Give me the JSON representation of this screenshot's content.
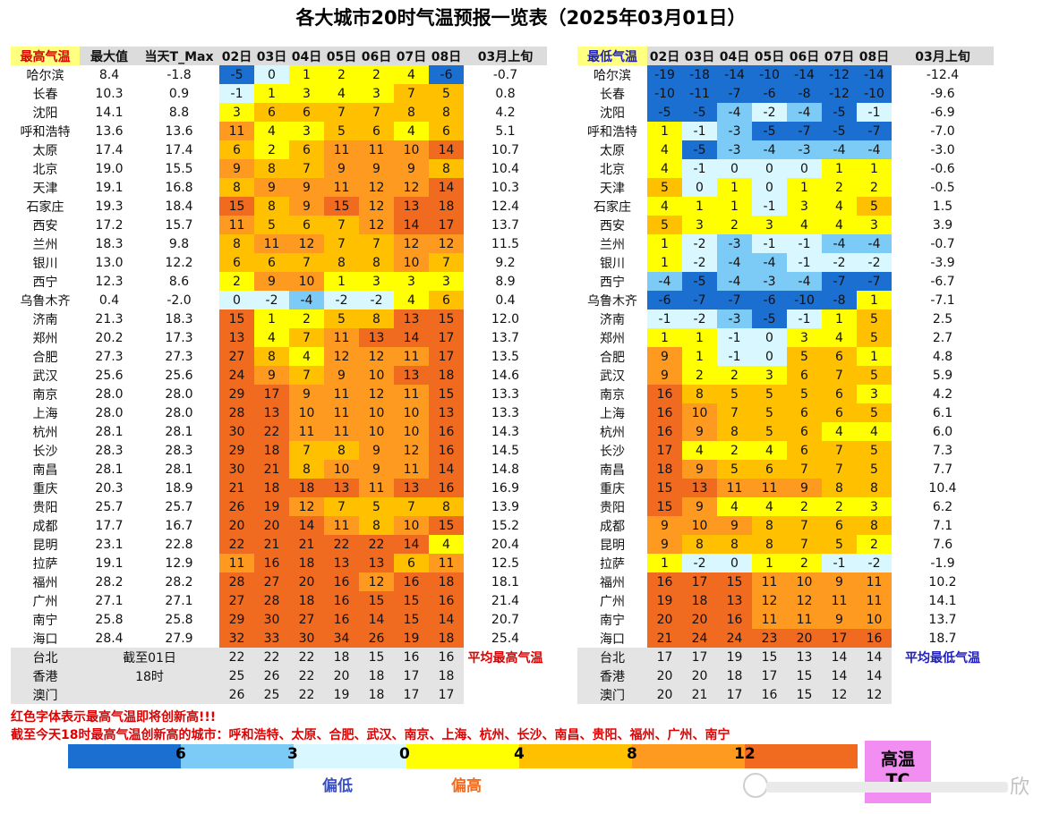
{
  "title": "各大城市20时气温预报一览表（2025年03月01日）",
  "colors": {
    "scale": [
      "#1a6fd0",
      "#7ccbf6",
      "#d9f7ff",
      "#ffff00",
      "#ffc000",
      "#ff9a20",
      "#f06a20"
    ],
    "max_value_text": "#f08a1e",
    "red_text": "#e00000",
    "avg_max_label": "#e00000",
    "avg_min_label": "#2020c0",
    "hot_box": "#f28ef2",
    "header_bg": "#dcdcdc"
  },
  "legend": {
    "ticks": [
      "6",
      "3",
      "0",
      "4",
      "8",
      "12"
    ],
    "low_label": "偏低",
    "high_label": "偏高",
    "hot_label": "高温",
    "hot_sub": "TC"
  },
  "notes": {
    "line1": "红色字体表示最高气温即将创新高!!!",
    "line2": "截至今天18时最高气温创新高的城市：呼和浩特、太原、合肥、武汉、南京、上海、杭州、长沙、南昌、贵阳、福州、广州、南宁"
  },
  "watermark": "欣",
  "chart_data": [
    {
      "type": "table",
      "title": "最高气温",
      "headers": [
        "最高气温",
        "最大值",
        "当天T_Max",
        "02日",
        "03日",
        "04日",
        "05日",
        "06日",
        "07日",
        "08日",
        "03月上旬"
      ],
      "rows": [
        {
          "city": "哈尔滨",
          "max": "8.4",
          "today": "-1.8",
          "days": [
            -5,
            0,
            1,
            2,
            2,
            4,
            -6
          ],
          "avg": "-0.7"
        },
        {
          "city": "长春",
          "max": "10.3",
          "today": "0.9",
          "days": [
            -1,
            1,
            3,
            4,
            3,
            7,
            5
          ],
          "avg": "0.8"
        },
        {
          "city": "沈阳",
          "max": "14.1",
          "today": "8.8",
          "days": [
            3,
            6,
            6,
            7,
            7,
            8,
            8
          ],
          "avg": "4.2"
        },
        {
          "city": "呼和浩特",
          "max": "13.6",
          "today": "13.6",
          "days": [
            11,
            4,
            3,
            5,
            6,
            4,
            6
          ],
          "avg": "5.1"
        },
        {
          "city": "太原",
          "max": "17.4",
          "today": "17.4",
          "days": [
            6,
            2,
            6,
            11,
            11,
            10,
            14
          ],
          "avg": "10.7"
        },
        {
          "city": "北京",
          "max": "19.0",
          "today": "15.5",
          "days": [
            9,
            8,
            7,
            9,
            9,
            9,
            8
          ],
          "avg": "10.4"
        },
        {
          "city": "天津",
          "max": "19.1",
          "today": "16.8",
          "days": [
            8,
            9,
            9,
            11,
            12,
            12,
            14
          ],
          "avg": "10.3"
        },
        {
          "city": "石家庄",
          "max": "19.3",
          "today": "18.4",
          "days": [
            15,
            8,
            9,
            15,
            12,
            13,
            18
          ],
          "avg": "12.4"
        },
        {
          "city": "西安",
          "max": "17.2",
          "today": "15.7",
          "days": [
            11,
            5,
            6,
            7,
            12,
            14,
            17
          ],
          "avg": "13.7"
        },
        {
          "city": "兰州",
          "max": "18.3",
          "today": "9.8",
          "days": [
            8,
            11,
            12,
            7,
            7,
            12,
            12
          ],
          "avg": "11.5"
        },
        {
          "city": "银川",
          "max": "13.0",
          "today": "12.2",
          "days": [
            6,
            6,
            7,
            8,
            8,
            10,
            7
          ],
          "avg": "9.2"
        },
        {
          "city": "西宁",
          "max": "12.3",
          "today": "8.6",
          "days": [
            2,
            9,
            10,
            1,
            3,
            3,
            3
          ],
          "avg": "8.9"
        },
        {
          "city": "乌鲁木齐",
          "max": "0.4",
          "today": "-2.0",
          "days": [
            0,
            -2,
            -4,
            -2,
            -2,
            4,
            6
          ],
          "avg": "0.4"
        },
        {
          "city": "济南",
          "max": "21.3",
          "today": "18.3",
          "days": [
            15,
            1,
            2,
            5,
            8,
            13,
            15
          ],
          "avg": "12.0"
        },
        {
          "city": "郑州",
          "max": "20.2",
          "today": "17.3",
          "days": [
            13,
            4,
            7,
            11,
            13,
            14,
            17
          ],
          "avg": "13.7"
        },
        {
          "city": "合肥",
          "max": "27.3",
          "today": "27.3",
          "days": [
            27,
            8,
            4,
            12,
            12,
            11,
            17
          ],
          "avg": "13.5"
        },
        {
          "city": "武汉",
          "max": "25.6",
          "today": "25.6",
          "days": [
            24,
            9,
            7,
            9,
            10,
            13,
            18
          ],
          "avg": "14.6"
        },
        {
          "city": "南京",
          "max": "28.0",
          "today": "28.0",
          "days": [
            29,
            17,
            9,
            11,
            12,
            11,
            15
          ],
          "avg": "13.3"
        },
        {
          "city": "上海",
          "max": "28.0",
          "today": "28.0",
          "days": [
            28,
            13,
            10,
            11,
            10,
            10,
            13
          ],
          "avg": "13.3"
        },
        {
          "city": "杭州",
          "max": "28.1",
          "today": "28.1",
          "days": [
            30,
            22,
            11,
            11,
            10,
            10,
            16
          ],
          "avg": "14.3"
        },
        {
          "city": "长沙",
          "max": "28.3",
          "today": "28.3",
          "days": [
            29,
            18,
            7,
            8,
            9,
            12,
            16
          ],
          "avg": "14.5"
        },
        {
          "city": "南昌",
          "max": "28.1",
          "today": "28.1",
          "days": [
            30,
            21,
            8,
            10,
            9,
            11,
            14
          ],
          "avg": "14.8"
        },
        {
          "city": "重庆",
          "max": "20.3",
          "today": "18.9",
          "days": [
            21,
            18,
            18,
            13,
            11,
            13,
            16
          ],
          "avg": "16.9"
        },
        {
          "city": "贵阳",
          "max": "25.7",
          "today": "25.7",
          "days": [
            26,
            19,
            12,
            7,
            5,
            7,
            8
          ],
          "avg": "13.9"
        },
        {
          "city": "成都",
          "max": "17.7",
          "today": "16.7",
          "days": [
            20,
            20,
            14,
            11,
            8,
            10,
            15
          ],
          "avg": "15.2"
        },
        {
          "city": "昆明",
          "max": "23.1",
          "today": "22.8",
          "days": [
            22,
            21,
            21,
            22,
            22,
            14,
            4
          ],
          "avg": "20.4"
        },
        {
          "city": "拉萨",
          "max": "19.1",
          "today": "12.9",
          "days": [
            11,
            16,
            18,
            13,
            13,
            6,
            11
          ],
          "avg": "12.5"
        },
        {
          "city": "福州",
          "max": "28.2",
          "today": "28.2",
          "days": [
            28,
            27,
            20,
            16,
            12,
            16,
            18
          ],
          "avg": "18.1"
        },
        {
          "city": "广州",
          "max": "27.1",
          "today": "27.1",
          "days": [
            27,
            28,
            18,
            16,
            15,
            15,
            16
          ],
          "avg": "21.4"
        },
        {
          "city": "南宁",
          "max": "25.8",
          "today": "25.8",
          "days": [
            29,
            30,
            27,
            16,
            14,
            15,
            14
          ],
          "avg": "20.7"
        },
        {
          "city": "海口",
          "max": "28.4",
          "today": "27.9",
          "days": [
            32,
            33,
            30,
            34,
            26,
            19,
            18
          ],
          "avg": "25.4"
        }
      ],
      "extra_rows": [
        {
          "city": "台北",
          "max": "截至01日",
          "today": "",
          "days": [
            22,
            22,
            22,
            18,
            15,
            16,
            16
          ],
          "avg": "平均最高气温"
        },
        {
          "city": "香港",
          "max": "18时",
          "today": "",
          "days": [
            25,
            26,
            22,
            20,
            18,
            17,
            18
          ],
          "avg": ""
        },
        {
          "city": "澳门",
          "max": "",
          "today": "",
          "days": [
            26,
            25,
            22,
            19,
            18,
            17,
            17
          ],
          "avg": ""
        }
      ]
    },
    {
      "type": "table",
      "title": "最低气温",
      "headers": [
        "最低气温",
        "02日",
        "03日",
        "04日",
        "05日",
        "06日",
        "07日",
        "08日",
        "03月上旬"
      ],
      "rows": [
        {
          "city": "哈尔滨",
          "days": [
            -19,
            -18,
            -14,
            -10,
            -14,
            -12,
            -14
          ],
          "avg": "-12.4"
        },
        {
          "city": "长春",
          "days": [
            -10,
            -11,
            -7,
            -6,
            -8,
            -12,
            -10
          ],
          "avg": "-9.6"
        },
        {
          "city": "沈阳",
          "days": [
            -5,
            -5,
            -4,
            -2,
            -4,
            -5,
            -1
          ],
          "avg": "-6.9"
        },
        {
          "city": "呼和浩特",
          "days": [
            1,
            -1,
            -3,
            -5,
            -7,
            -5,
            -7
          ],
          "avg": "-7.0"
        },
        {
          "city": "太原",
          "days": [
            4,
            -5,
            -3,
            -4,
            -3,
            -4,
            -4
          ],
          "avg": "-3.0"
        },
        {
          "city": "北京",
          "days": [
            4,
            -1,
            0,
            0,
            0,
            1,
            1
          ],
          "avg": "-0.6"
        },
        {
          "city": "天津",
          "days": [
            5,
            0,
            1,
            0,
            1,
            2,
            2
          ],
          "avg": "-0.5"
        },
        {
          "city": "石家庄",
          "days": [
            4,
            1,
            1,
            -1,
            3,
            4,
            5
          ],
          "avg": "1.5"
        },
        {
          "city": "西安",
          "days": [
            5,
            3,
            2,
            3,
            4,
            4,
            3
          ],
          "avg": "3.9"
        },
        {
          "city": "兰州",
          "days": [
            1,
            -2,
            -3,
            -1,
            -1,
            -4,
            -4
          ],
          "avg": "-0.7"
        },
        {
          "city": "银川",
          "days": [
            1,
            -2,
            -4,
            -4,
            -1,
            -2,
            -2
          ],
          "avg": "-3.9"
        },
        {
          "city": "西宁",
          "days": [
            -4,
            -5,
            -4,
            -3,
            -4,
            -7,
            -7
          ],
          "avg": "-6.7"
        },
        {
          "city": "乌鲁木齐",
          "days": [
            -6,
            -7,
            -7,
            -6,
            -10,
            -8,
            1
          ],
          "avg": "-7.1"
        },
        {
          "city": "济南",
          "days": [
            -1,
            -2,
            -3,
            -5,
            -1,
            1,
            5
          ],
          "avg": "2.5"
        },
        {
          "city": "郑州",
          "days": [
            1,
            1,
            -1,
            0,
            3,
            4,
            5
          ],
          "avg": "2.7"
        },
        {
          "city": "合肥",
          "days": [
            9,
            1,
            -1,
            0,
            5,
            6,
            1
          ],
          "avg": "4.8"
        },
        {
          "city": "武汉",
          "days": [
            9,
            2,
            2,
            3,
            6,
            7,
            5
          ],
          "avg": "5.9"
        },
        {
          "city": "南京",
          "days": [
            16,
            8,
            5,
            5,
            5,
            6,
            3
          ],
          "avg": "4.2"
        },
        {
          "city": "上海",
          "days": [
            16,
            10,
            7,
            5,
            6,
            6,
            5
          ],
          "avg": "6.1"
        },
        {
          "city": "杭州",
          "days": [
            16,
            9,
            8,
            5,
            6,
            4,
            4
          ],
          "avg": "6.0"
        },
        {
          "city": "长沙",
          "days": [
            17,
            4,
            2,
            4,
            6,
            7,
            5
          ],
          "avg": "7.3"
        },
        {
          "city": "南昌",
          "days": [
            18,
            9,
            5,
            6,
            7,
            7,
            5
          ],
          "avg": "7.7"
        },
        {
          "city": "重庆",
          "days": [
            15,
            13,
            11,
            11,
            9,
            8,
            8
          ],
          "avg": "10.4"
        },
        {
          "city": "贵阳",
          "days": [
            15,
            9,
            4,
            4,
            2,
            2,
            3
          ],
          "avg": "6.2"
        },
        {
          "city": "成都",
          "days": [
            9,
            10,
            9,
            8,
            7,
            6,
            8
          ],
          "avg": "7.1"
        },
        {
          "city": "昆明",
          "days": [
            9,
            8,
            8,
            8,
            7,
            5,
            2
          ],
          "avg": "7.6"
        },
        {
          "city": "拉萨",
          "days": [
            1,
            -2,
            0,
            1,
            2,
            -1,
            -2
          ],
          "avg": "-1.9"
        },
        {
          "city": "福州",
          "days": [
            16,
            17,
            15,
            11,
            10,
            9,
            11
          ],
          "avg": "10.2"
        },
        {
          "city": "广州",
          "days": [
            19,
            18,
            13,
            12,
            12,
            11,
            11
          ],
          "avg": "14.1"
        },
        {
          "city": "南宁",
          "days": [
            20,
            20,
            16,
            11,
            11,
            9,
            10
          ],
          "avg": "13.7"
        },
        {
          "city": "海口",
          "days": [
            21,
            24,
            24,
            23,
            20,
            17,
            16
          ],
          "avg": "18.7"
        }
      ],
      "extra_rows": [
        {
          "city": "台北",
          "days": [
            17,
            17,
            19,
            15,
            13,
            14,
            14
          ],
          "avg": "平均最低气温"
        },
        {
          "city": "香港",
          "days": [
            20,
            20,
            18,
            17,
            15,
            14,
            14
          ],
          "avg": ""
        },
        {
          "city": "澳门",
          "days": [
            20,
            21,
            17,
            16,
            15,
            12,
            12
          ],
          "avg": ""
        }
      ]
    }
  ]
}
